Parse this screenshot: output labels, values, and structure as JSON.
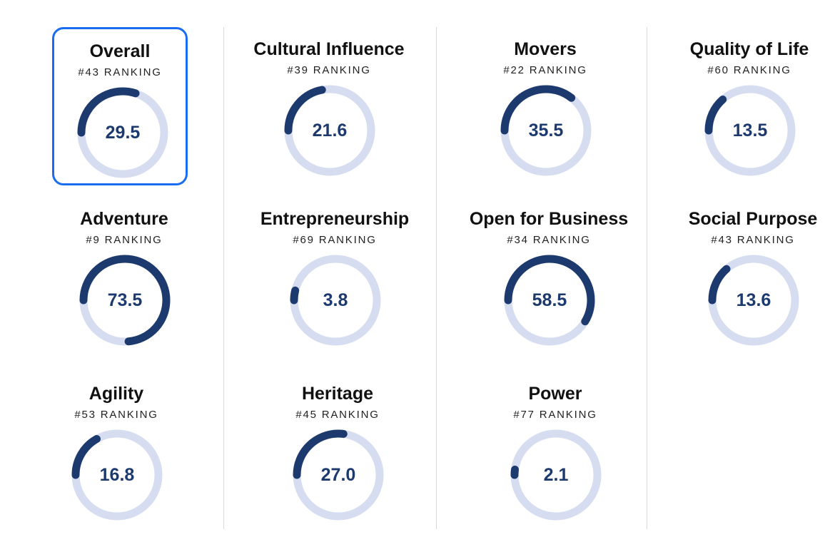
{
  "colors": {
    "track": "#d6ddf0",
    "arc": "#1d3a6e",
    "value_text": "#1d3a6e",
    "selected_border": "#1a6cf0",
    "divider": "#d9d9d9"
  },
  "metrics": [
    {
      "name": "Overall",
      "rank_label": "#43 RANKING",
      "value": "29.5",
      "fraction": 0.3,
      "selected": true
    },
    {
      "name": "Cultural Influence",
      "rank_label": "#39 RANKING",
      "value": "21.6",
      "fraction": 0.22
    },
    {
      "name": "Movers",
      "rank_label": "#22 RANKING",
      "value": "35.5",
      "fraction": 0.355
    },
    {
      "name": "Quality of Life",
      "rank_label": "#60 RANKING",
      "value": "13.5",
      "fraction": 0.135
    },
    {
      "name": "Adventure",
      "rank_label": "#9 RANKING",
      "value": "73.5",
      "fraction": 0.735
    },
    {
      "name": "Entrepreneurship",
      "rank_label": "#69 RANKING",
      "value": "3.8",
      "fraction": 0.038
    },
    {
      "name": "Open for Business",
      "rank_label": "#34 RANKING",
      "value": "58.5",
      "fraction": 0.585
    },
    {
      "name": "Social Purpose",
      "rank_label": "#43 RANKING",
      "value": "13.6",
      "fraction": 0.136
    },
    {
      "name": "Agility",
      "rank_label": "#53 RANKING",
      "value": "16.8",
      "fraction": 0.168
    },
    {
      "name": "Heritage",
      "rank_label": "#45 RANKING",
      "value": "27.0",
      "fraction": 0.27
    },
    {
      "name": "Power",
      "rank_label": "#77 RANKING",
      "value": "2.1",
      "fraction": 0.021
    }
  ]
}
